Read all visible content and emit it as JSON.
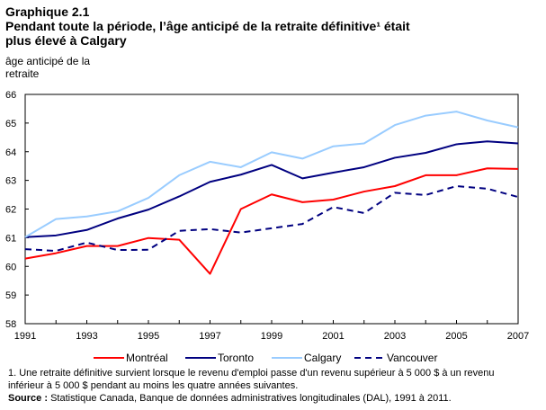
{
  "header": {
    "label": "Graphique 2.1",
    "title_line1": "Pendant toute la période, l’âge anticipé de la retraite définitive¹ était",
    "title_line2": "plus élevé à Calgary"
  },
  "chart_data": {
    "type": "line",
    "title": "Pendant toute la période, l’âge anticipé de la retraite définitive¹ était plus élevé à Calgary",
    "ylabel": "âge anticipé de la retraite",
    "xlabel": "",
    "ylim": [
      58,
      66
    ],
    "yticks": [
      "58",
      "59",
      "60",
      "61",
      "62",
      "63",
      "64",
      "65",
      "66"
    ],
    "xticks": [
      "1991",
      "1993",
      "1995",
      "1997",
      "1999",
      "2001",
      "2003",
      "2005",
      "2007"
    ],
    "x": [
      1991,
      1992,
      1993,
      1994,
      1995,
      1996,
      1997,
      1998,
      1999,
      2000,
      2001,
      2002,
      2003,
      2004,
      2005,
      2006,
      2007
    ],
    "grid": false,
    "legend": "bottom",
    "series": [
      {
        "name": "Montréal",
        "color": "#ff0000",
        "dash": false,
        "values": [
          60.27,
          60.46,
          60.71,
          60.71,
          60.99,
          60.93,
          59.74,
          62.0,
          62.51,
          62.24,
          62.33,
          62.61,
          62.8,
          63.18,
          63.18,
          63.42,
          63.4
        ]
      },
      {
        "name": "Toronto",
        "color": "#000080",
        "dash": false,
        "values": [
          61.02,
          61.08,
          61.27,
          61.67,
          61.98,
          62.44,
          62.95,
          63.2,
          63.54,
          63.07,
          63.27,
          63.46,
          63.79,
          63.96,
          64.26,
          64.36,
          64.29
        ]
      },
      {
        "name": "Calgary",
        "color": "#99ccff",
        "dash": false,
        "values": [
          61.02,
          61.65,
          61.74,
          61.92,
          62.39,
          63.18,
          63.65,
          63.46,
          63.98,
          63.76,
          64.19,
          64.29,
          64.93,
          65.26,
          65.4,
          65.09,
          64.85
        ]
      },
      {
        "name": "Vancouver",
        "color": "#000080",
        "dash": true,
        "values": [
          60.6,
          60.54,
          60.83,
          60.57,
          60.58,
          61.24,
          61.3,
          61.18,
          61.33,
          61.48,
          62.07,
          61.86,
          62.57,
          62.49,
          62.8,
          62.71,
          62.42
        ]
      }
    ]
  },
  "footnote": {
    "note1": "1. Une retraite définitive survient lorsque le revenu d'emploi passe d'un revenu supérieur à 5 000 $ à un revenu",
    "note2": "inférieur à 5 000 $ pendant au moins les quatre années suivantes.",
    "source_label": "Source :",
    "source_text": " Statistique Canada, Banque de données administratives longitudinales (DAL), 1991 à 2011."
  }
}
